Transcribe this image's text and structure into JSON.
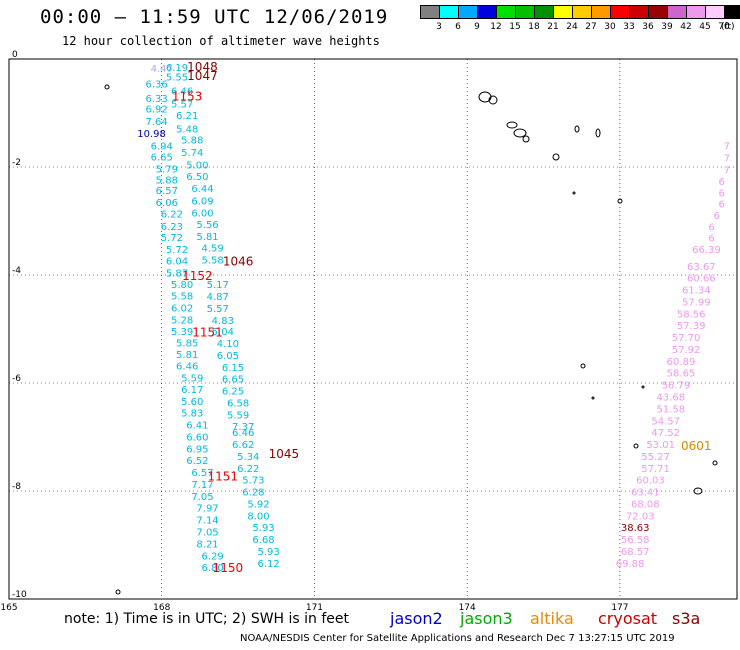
{
  "header": {
    "title": "00:00 – 11:59 UTC 12/06/2019",
    "subtitle": "12 hour collection of altimeter wave heights"
  },
  "scale": {
    "unit": "(ft)",
    "boxes": [
      {
        "color": "#808080",
        "label": "3"
      },
      {
        "color": "#00ffff",
        "label": "6"
      },
      {
        "color": "#00aaff",
        "label": "9"
      },
      {
        "color": "#0000dd",
        "label": "12"
      },
      {
        "color": "#00e000",
        "label": "15"
      },
      {
        "color": "#00c000",
        "label": "18"
      },
      {
        "color": "#009000",
        "label": "21"
      },
      {
        "color": "#ffff00",
        "label": "24"
      },
      {
        "color": "#ffcc00",
        "label": "27"
      },
      {
        "color": "#ff9900",
        "label": "30"
      },
      {
        "color": "#ff0000",
        "label": "33"
      },
      {
        "color": "#cc0000",
        "label": "36"
      },
      {
        "color": "#990000",
        "label": "39"
      },
      {
        "color": "#cc66cc",
        "label": "42"
      },
      {
        "color": "#ee99ee",
        "label": "45"
      },
      {
        "color": "#ffccff",
        "label": "70"
      },
      {
        "color": "#000000",
        "label": ""
      }
    ]
  },
  "axes": {
    "x_ticks": [
      {
        "lon": 165,
        "label": "165"
      },
      {
        "lon": 168,
        "label": "168"
      },
      {
        "lon": 171,
        "label": "171"
      },
      {
        "lon": 174,
        "label": "174"
      },
      {
        "lon": 177,
        "label": "177"
      }
    ],
    "y_ticks": [
      {
        "lat": 0,
        "label": "0"
      },
      {
        "lat": -2,
        "label": "-2"
      },
      {
        "lat": -4,
        "label": "-4"
      },
      {
        "lat": -6,
        "label": "-6"
      },
      {
        "lat": -8,
        "label": "-8"
      },
      {
        "lat": -10,
        "label": "-10"
      }
    ],
    "lon_range": [
      165,
      179.3
    ],
    "lat_range": [
      -10,
      0
    ],
    "grid": "dotted"
  },
  "tracks": [
    {
      "color": "#aaaaee",
      "points": [
        {
          "lon": 168.0,
          "lat": -0.17,
          "v": "4.47"
        }
      ]
    },
    {
      "color": "#00bbdd",
      "points": [
        {
          "lon": 168.3,
          "lat": -0.15,
          "v": "6.19"
        },
        {
          "lon": 168.3,
          "lat": -0.32,
          "v": "5.55"
        },
        {
          "lon": 167.9,
          "lat": -0.45,
          "v": "6.36"
        },
        {
          "lon": 167.9,
          "lat": -0.72,
          "v": "6.33"
        },
        {
          "lon": 168.4,
          "lat": -0.58,
          "v": "6.46"
        },
        {
          "lon": 168.4,
          "lat": -0.82,
          "v": "5.57"
        },
        {
          "lon": 167.9,
          "lat": -0.92,
          "v": "6.92"
        },
        {
          "lon": 168.5,
          "lat": -1.04,
          "v": "6.21"
        },
        {
          "lon": 167.9,
          "lat": -1.15,
          "v": "7.64"
        },
        {
          "lon": 168.5,
          "lat": -1.29,
          "v": "5.48"
        },
        {
          "lon": 168.0,
          "lat": -1.6,
          "v": "6.94"
        },
        {
          "lon": 168.6,
          "lat": -1.49,
          "v": "5.88"
        },
        {
          "lon": 168.0,
          "lat": -1.81,
          "v": "6.65"
        },
        {
          "lon": 168.6,
          "lat": -1.72,
          "v": "5.74"
        },
        {
          "lon": 168.1,
          "lat": -2.03,
          "v": "5.79"
        },
        {
          "lon": 168.7,
          "lat": -1.95,
          "v": "5.00"
        },
        {
          "lon": 168.1,
          "lat": -2.23,
          "v": "5.88"
        },
        {
          "lon": 168.7,
          "lat": -2.17,
          "v": "6.50"
        },
        {
          "lon": 168.1,
          "lat": -2.43,
          "v": "6.57"
        },
        {
          "lon": 168.8,
          "lat": -2.39,
          "v": "6.44"
        },
        {
          "lon": 168.1,
          "lat": -2.65,
          "v": "6.06"
        },
        {
          "lon": 168.8,
          "lat": -2.62,
          "v": "6.09"
        },
        {
          "lon": 168.2,
          "lat": -2.86,
          "v": "6.22"
        },
        {
          "lon": 168.8,
          "lat": -2.84,
          "v": "6.00"
        },
        {
          "lon": 168.2,
          "lat": -3.09,
          "v": "6.23"
        },
        {
          "lon": 168.9,
          "lat": -3.06,
          "v": "5.56"
        },
        {
          "lon": 168.2,
          "lat": -3.3,
          "v": "5.72"
        },
        {
          "lon": 168.9,
          "lat": -3.28,
          "v": "5.81"
        },
        {
          "lon": 168.3,
          "lat": -3.52,
          "v": "5.72"
        },
        {
          "lon": 169.0,
          "lat": -3.49,
          "v": "4.59"
        },
        {
          "lon": 168.3,
          "lat": -3.73,
          "v": "6.04"
        },
        {
          "lon": 169.0,
          "lat": -3.71,
          "v": "5.58"
        },
        {
          "lon": 168.3,
          "lat": -3.95,
          "v": "5.87"
        },
        {
          "lon": 168.4,
          "lat": -4.17,
          "v": "5.80"
        },
        {
          "lon": 169.1,
          "lat": -4.17,
          "v": "5.17"
        },
        {
          "lon": 168.4,
          "lat": -4.38,
          "v": "5.58"
        },
        {
          "lon": 169.1,
          "lat": -4.39,
          "v": "4.87"
        },
        {
          "lon": 168.4,
          "lat": -4.6,
          "v": "6.02"
        },
        {
          "lon": 169.1,
          "lat": -4.61,
          "v": "5.57"
        },
        {
          "lon": 168.4,
          "lat": -4.82,
          "v": "5.28"
        },
        {
          "lon": 169.2,
          "lat": -4.83,
          "v": "4.83"
        },
        {
          "lon": 168.4,
          "lat": -5.04,
          "v": "5.39"
        },
        {
          "lon": 169.2,
          "lat": -5.04,
          "v": "5.04"
        },
        {
          "lon": 168.5,
          "lat": -5.25,
          "v": "5.85"
        },
        {
          "lon": 169.3,
          "lat": -5.26,
          "v": "4.10"
        },
        {
          "lon": 168.5,
          "lat": -5.46,
          "v": "5.81"
        },
        {
          "lon": 169.3,
          "lat": -5.48,
          "v": "6.05"
        },
        {
          "lon": 168.5,
          "lat": -5.68,
          "v": "6.46"
        },
        {
          "lon": 169.4,
          "lat": -5.7,
          "v": "6.15"
        },
        {
          "lon": 168.6,
          "lat": -5.9,
          "v": "5.59"
        },
        {
          "lon": 169.4,
          "lat": -5.92,
          "v": "6.65"
        },
        {
          "lon": 168.6,
          "lat": -6.11,
          "v": "6.17"
        },
        {
          "lon": 169.4,
          "lat": -6.14,
          "v": "6.25"
        },
        {
          "lon": 168.6,
          "lat": -6.33,
          "v": "5.60"
        },
        {
          "lon": 169.5,
          "lat": -6.36,
          "v": "6.58"
        },
        {
          "lon": 168.6,
          "lat": -6.55,
          "v": "5.83"
        },
        {
          "lon": 169.5,
          "lat": -6.58,
          "v": "5.59"
        },
        {
          "lon": 168.7,
          "lat": -6.77,
          "v": "6.41"
        },
        {
          "lon": 169.6,
          "lat": -6.8,
          "v": "7.37"
        },
        {
          "lon": 168.7,
          "lat": -6.99,
          "v": "6.60"
        },
        {
          "lon": 169.6,
          "lat": -6.91,
          "v": "6.46"
        },
        {
          "lon": 168.7,
          "lat": -7.21,
          "v": "6.95"
        },
        {
          "lon": 169.6,
          "lat": -7.13,
          "v": "6.62"
        },
        {
          "lon": 168.7,
          "lat": -7.43,
          "v": "6.52"
        },
        {
          "lon": 169.7,
          "lat": -7.35,
          "v": "5.34"
        },
        {
          "lon": 168.8,
          "lat": -7.65,
          "v": "6.57"
        },
        {
          "lon": 169.7,
          "lat": -7.57,
          "v": "6.22"
        },
        {
          "lon": 168.8,
          "lat": -7.87,
          "v": "7.17"
        },
        {
          "lon": 169.8,
          "lat": -7.79,
          "v": "5.73"
        },
        {
          "lon": 168.8,
          "lat": -8.09,
          "v": "7.05"
        },
        {
          "lon": 169.8,
          "lat": -8.01,
          "v": "6.28"
        },
        {
          "lon": 168.9,
          "lat": -8.31,
          "v": "7.97"
        },
        {
          "lon": 169.9,
          "lat": -8.23,
          "v": "5.92"
        },
        {
          "lon": 168.9,
          "lat": -8.53,
          "v": "7.14"
        },
        {
          "lon": 169.9,
          "lat": -8.45,
          "v": "8.00"
        },
        {
          "lon": 168.9,
          "lat": -8.75,
          "v": "7.05"
        },
        {
          "lon": 170.0,
          "lat": -8.67,
          "v": "5.93"
        },
        {
          "lon": 168.9,
          "lat": -8.97,
          "v": "8.21"
        },
        {
          "lon": 170.0,
          "lat": -8.89,
          "v": "6.68"
        },
        {
          "lon": 169.0,
          "lat": -9.19,
          "v": "6.29"
        },
        {
          "lon": 170.1,
          "lat": -9.11,
          "v": "5.93"
        },
        {
          "lon": 169.0,
          "lat": -9.41,
          "v": "6.80"
        },
        {
          "lon": 170.1,
          "lat": -9.33,
          "v": "6.12"
        }
      ]
    },
    {
      "color": "#0000aa",
      "points": [
        {
          "lon": 167.8,
          "lat": -1.37,
          "v": "10.98"
        }
      ]
    },
    {
      "color": "#ee99ee",
      "points": [
        {
          "lon": 179.1,
          "lat": -1.6,
          "v": "7"
        },
        {
          "lon": 179.1,
          "lat": -1.82,
          "v": "7"
        },
        {
          "lon": 179.1,
          "lat": -2.05,
          "v": "7"
        },
        {
          "lon": 179.0,
          "lat": -2.26,
          "v": "6"
        },
        {
          "lon": 179.0,
          "lat": -2.47,
          "v": "6"
        },
        {
          "lon": 179.0,
          "lat": -2.68,
          "v": "6"
        },
        {
          "lon": 178.9,
          "lat": -2.89,
          "v": "6"
        },
        {
          "lon": 178.8,
          "lat": -3.1,
          "v": "6"
        },
        {
          "lon": 178.8,
          "lat": -3.31,
          "v": "6"
        },
        {
          "lon": 178.7,
          "lat": -3.52,
          "v": "66.39"
        },
        {
          "lon": 178.6,
          "lat": -3.83,
          "v": "63.67"
        },
        {
          "lon": 178.6,
          "lat": -4.05,
          "v": "60.66"
        },
        {
          "lon": 178.5,
          "lat": -4.27,
          "v": "61.34"
        },
        {
          "lon": 178.5,
          "lat": -4.49,
          "v": "57.99"
        },
        {
          "lon": 178.4,
          "lat": -4.71,
          "v": "58.56"
        },
        {
          "lon": 178.4,
          "lat": -4.93,
          "v": "57.39"
        },
        {
          "lon": 178.3,
          "lat": -5.15,
          "v": "57.70"
        },
        {
          "lon": 178.3,
          "lat": -5.37,
          "v": "57.92"
        },
        {
          "lon": 178.2,
          "lat": -5.59,
          "v": "60.89"
        },
        {
          "lon": 178.2,
          "lat": -5.81,
          "v": "58.65"
        },
        {
          "lon": 178.1,
          "lat": -6.03,
          "v": "56.79"
        },
        {
          "lon": 178.0,
          "lat": -6.25,
          "v": "43.68"
        },
        {
          "lon": 178.0,
          "lat": -6.47,
          "v": "51.58"
        },
        {
          "lon": 177.9,
          "lat": -6.69,
          "v": "54.57"
        },
        {
          "lon": 177.9,
          "lat": -6.91,
          "v": "47.52"
        },
        {
          "lon": 177.8,
          "lat": -7.13,
          "v": "53.01"
        },
        {
          "lon": 177.7,
          "lat": -7.35,
          "v": "55.27"
        },
        {
          "lon": 177.7,
          "lat": -7.57,
          "v": "57.71"
        },
        {
          "lon": 177.6,
          "lat": -7.79,
          "v": "60.03"
        },
        {
          "lon": 177.5,
          "lat": -8.01,
          "v": "63.41"
        },
        {
          "lon": 177.5,
          "lat": -8.23,
          "v": "68.08"
        },
        {
          "lon": 177.4,
          "lat": -8.45,
          "v": "72.03"
        },
        {
          "lon": 177.3,
          "lat": -8.89,
          "v": "56.58"
        },
        {
          "lon": 177.3,
          "lat": -9.11,
          "v": "68.57"
        },
        {
          "lon": 177.2,
          "lat": -9.33,
          "v": "69.88"
        }
      ]
    },
    {
      "color": "#880000",
      "points": [
        {
          "lon": 177.3,
          "lat": -8.67,
          "v": "38.63"
        }
      ]
    }
  ],
  "time_labels": [
    {
      "lon": 168.8,
      "lat": -0.13,
      "t": "1048",
      "color": "#880000"
    },
    {
      "lon": 168.8,
      "lat": -0.3,
      "t": "1047",
      "color": "#880000"
    },
    {
      "lon": 168.5,
      "lat": -0.68,
      "t": "1153",
      "color": "#ee0000"
    },
    {
      "lon": 169.5,
      "lat": -3.73,
      "t": "1046",
      "color": "#880000"
    },
    {
      "lon": 168.7,
      "lat": -4.0,
      "t": "1152",
      "color": "#ee0000"
    },
    {
      "lon": 168.9,
      "lat": -5.05,
      "t": "1151",
      "color": "#ee0000"
    },
    {
      "lon": 170.4,
      "lat": -7.3,
      "t": "1045",
      "color": "#880000"
    },
    {
      "lon": 169.2,
      "lat": -7.71,
      "t": "1151",
      "color": "#ee0000"
    },
    {
      "lon": 169.3,
      "lat": -9.41,
      "t": "1150",
      "color": "#ee0000"
    },
    {
      "lon": 178.5,
      "lat": -7.15,
      "t": "0601",
      "color": "#dd8800"
    }
  ],
  "footer": {
    "note": "note: 1) Time is in UTC; 2) SWH is in feet",
    "satellites": [
      {
        "name": "jason2",
        "color": "#0000cc"
      },
      {
        "name": "jason3",
        "color": "#00aa00"
      },
      {
        "name": "altika",
        "color": "#ee8800"
      },
      {
        "name": "cryosat",
        "color": "#cc0000"
      },
      {
        "name": "s3a",
        "color": "#880000"
      }
    ],
    "credit": "NOAA/NESDIS Center for Satellite Applications and Research    Dec  7 13:27:15 UTC 2019"
  }
}
